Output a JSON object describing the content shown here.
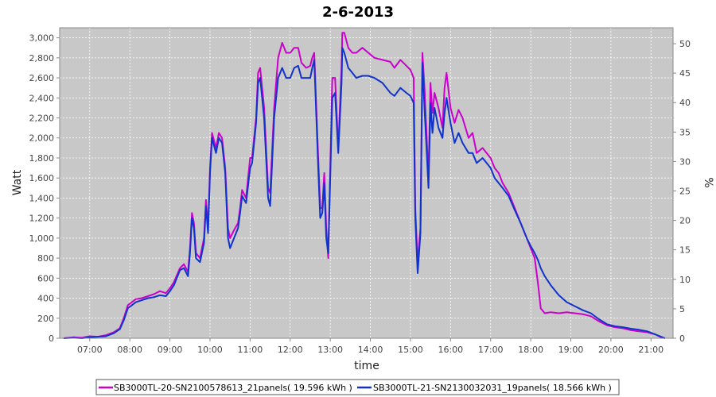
{
  "chart_data": {
    "type": "line",
    "title": "2-6-2013",
    "xlabel": "time",
    "ylabel": "Watt",
    "y2label": "%",
    "x_unit": "hours",
    "x_ticks": [
      "07:00",
      "08:00",
      "09:00",
      "10:00",
      "11:00",
      "12:00",
      "13:00",
      "14:00",
      "15:00",
      "16:00",
      "17:00",
      "18:00",
      "19:00",
      "20:00",
      "21:00"
    ],
    "xlim": [
      6.25,
      21.55
    ],
    "ylim": [
      0,
      3100
    ],
    "y_ticks": [
      "0",
      "200",
      "400",
      "600",
      "800",
      "1,000",
      "1,200",
      "1,400",
      "1,600",
      "1,800",
      "2,000",
      "2,200",
      "2,400",
      "2,600",
      "2,800",
      "3,000"
    ],
    "y2lim": [
      0,
      52.7
    ],
    "y2_ticks": [
      "0",
      "5",
      "10",
      "15",
      "20",
      "25",
      "30",
      "35",
      "40",
      "45",
      "50"
    ],
    "grid": true,
    "legend_position": "bottom",
    "series": [
      {
        "name": "SB3000TL-20-SN2100578613_21panels( 19.596 kWh )",
        "color": "#cc00cc",
        "points": [
          [
            6.35,
            0
          ],
          [
            6.6,
            10
          ],
          [
            6.8,
            5
          ],
          [
            7.0,
            20
          ],
          [
            7.2,
            15
          ],
          [
            7.4,
            30
          ],
          [
            7.6,
            60
          ],
          [
            7.75,
            100
          ],
          [
            7.85,
            200
          ],
          [
            7.95,
            330
          ],
          [
            8.05,
            360
          ],
          [
            8.15,
            390
          ],
          [
            8.3,
            400
          ],
          [
            8.45,
            420
          ],
          [
            8.6,
            440
          ],
          [
            8.75,
            470
          ],
          [
            8.9,
            450
          ],
          [
            9.0,
            500
          ],
          [
            9.1,
            560
          ],
          [
            9.25,
            700
          ],
          [
            9.35,
            740
          ],
          [
            9.45,
            660
          ],
          [
            9.5,
            900
          ],
          [
            9.55,
            1250
          ],
          [
            9.6,
            1150
          ],
          [
            9.65,
            850
          ],
          [
            9.75,
            800
          ],
          [
            9.85,
            1000
          ],
          [
            9.9,
            1380
          ],
          [
            9.95,
            1100
          ],
          [
            10.0,
            1700
          ],
          [
            10.05,
            2050
          ],
          [
            10.15,
            1900
          ],
          [
            10.22,
            2050
          ],
          [
            10.3,
            2000
          ],
          [
            10.38,
            1700
          ],
          [
            10.45,
            1100
          ],
          [
            10.5,
            1000
          ],
          [
            10.6,
            1080
          ],
          [
            10.7,
            1150
          ],
          [
            10.75,
            1300
          ],
          [
            10.8,
            1480
          ],
          [
            10.9,
            1400
          ],
          [
            11.0,
            1800
          ],
          [
            11.05,
            1800
          ],
          [
            11.15,
            2200
          ],
          [
            11.2,
            2650
          ],
          [
            11.25,
            2700
          ],
          [
            11.35,
            2300
          ],
          [
            11.45,
            1500
          ],
          [
            11.5,
            1450
          ],
          [
            11.6,
            2300
          ],
          [
            11.7,
            2800
          ],
          [
            11.8,
            2950
          ],
          [
            11.9,
            2850
          ],
          [
            12.0,
            2850
          ],
          [
            12.1,
            2900
          ],
          [
            12.2,
            2900
          ],
          [
            12.28,
            2750
          ],
          [
            12.4,
            2700
          ],
          [
            12.5,
            2720
          ],
          [
            12.55,
            2800
          ],
          [
            12.6,
            2850
          ],
          [
            12.7,
            1800
          ],
          [
            12.75,
            1300
          ],
          [
            12.8,
            1300
          ],
          [
            12.85,
            1650
          ],
          [
            12.9,
            1100
          ],
          [
            12.95,
            800
          ],
          [
            13.0,
            1700
          ],
          [
            13.05,
            2600
          ],
          [
            13.12,
            2600
          ],
          [
            13.2,
            1900
          ],
          [
            13.28,
            2700
          ],
          [
            13.3,
            3050
          ],
          [
            13.35,
            3050
          ],
          [
            13.45,
            2900
          ],
          [
            13.55,
            2850
          ],
          [
            13.65,
            2850
          ],
          [
            13.8,
            2900
          ],
          [
            13.95,
            2850
          ],
          [
            14.1,
            2800
          ],
          [
            14.3,
            2780
          ],
          [
            14.5,
            2760
          ],
          [
            14.6,
            2700
          ],
          [
            14.75,
            2780
          ],
          [
            14.9,
            2720
          ],
          [
            15.0,
            2680
          ],
          [
            15.08,
            2600
          ],
          [
            15.12,
            1300
          ],
          [
            15.18,
            750
          ],
          [
            15.25,
            1100
          ],
          [
            15.3,
            2850
          ],
          [
            15.35,
            2500
          ],
          [
            15.45,
            1600
          ],
          [
            15.5,
            2550
          ],
          [
            15.55,
            2250
          ],
          [
            15.6,
            2450
          ],
          [
            15.7,
            2300
          ],
          [
            15.8,
            2100
          ],
          [
            15.85,
            2500
          ],
          [
            15.9,
            2650
          ],
          [
            16.0,
            2300
          ],
          [
            16.1,
            2150
          ],
          [
            16.2,
            2280
          ],
          [
            16.3,
            2200
          ],
          [
            16.45,
            2000
          ],
          [
            16.55,
            2050
          ],
          [
            16.65,
            1850
          ],
          [
            16.8,
            1900
          ],
          [
            16.9,
            1850
          ],
          [
            17.0,
            1800
          ],
          [
            17.1,
            1700
          ],
          [
            17.2,
            1650
          ],
          [
            17.3,
            1550
          ],
          [
            17.45,
            1450
          ],
          [
            17.6,
            1300
          ],
          [
            17.75,
            1150
          ],
          [
            17.9,
            1000
          ],
          [
            18.0,
            900
          ],
          [
            18.1,
            800
          ],
          [
            18.18,
            550
          ],
          [
            18.25,
            300
          ],
          [
            18.35,
            250
          ],
          [
            18.5,
            260
          ],
          [
            18.7,
            250
          ],
          [
            18.9,
            260
          ],
          [
            19.1,
            250
          ],
          [
            19.3,
            240
          ],
          [
            19.5,
            220
          ],
          [
            19.7,
            170
          ],
          [
            19.9,
            130
          ],
          [
            20.1,
            110
          ],
          [
            20.3,
            100
          ],
          [
            20.5,
            80
          ],
          [
            20.7,
            70
          ],
          [
            20.9,
            60
          ],
          [
            21.1,
            40
          ],
          [
            21.25,
            10
          ],
          [
            21.35,
            0
          ]
        ]
      },
      {
        "name": "SB3000TL-21-SN2130032031_19panels( 18.566 kWh )",
        "color": "#1133cc",
        "points": [
          [
            6.35,
            0
          ],
          [
            6.6,
            5
          ],
          [
            6.8,
            0
          ],
          [
            7.0,
            10
          ],
          [
            7.2,
            15
          ],
          [
            7.4,
            20
          ],
          [
            7.6,
            50
          ],
          [
            7.75,
            90
          ],
          [
            7.85,
            180
          ],
          [
            7.95,
            300
          ],
          [
            8.05,
            330
          ],
          [
            8.15,
            360
          ],
          [
            8.3,
            380
          ],
          [
            8.45,
            400
          ],
          [
            8.6,
            410
          ],
          [
            8.75,
            430
          ],
          [
            8.9,
            420
          ],
          [
            9.0,
            470
          ],
          [
            9.1,
            530
          ],
          [
            9.25,
            680
          ],
          [
            9.35,
            700
          ],
          [
            9.45,
            620
          ],
          [
            9.5,
            850
          ],
          [
            9.55,
            1200
          ],
          [
            9.6,
            1100
          ],
          [
            9.65,
            800
          ],
          [
            9.75,
            760
          ],
          [
            9.85,
            950
          ],
          [
            9.9,
            1320
          ],
          [
            9.95,
            1050
          ],
          [
            10.0,
            1650
          ],
          [
            10.05,
            2000
          ],
          [
            10.15,
            1850
          ],
          [
            10.22,
            2000
          ],
          [
            10.3,
            1950
          ],
          [
            10.38,
            1650
          ],
          [
            10.45,
            1000
          ],
          [
            10.5,
            900
          ],
          [
            10.6,
            1000
          ],
          [
            10.7,
            1100
          ],
          [
            10.75,
            1250
          ],
          [
            10.8,
            1420
          ],
          [
            10.9,
            1350
          ],
          [
            11.0,
            1700
          ],
          [
            11.05,
            1750
          ],
          [
            11.15,
            2150
          ],
          [
            11.2,
            2550
          ],
          [
            11.25,
            2600
          ],
          [
            11.35,
            2200
          ],
          [
            11.45,
            1400
          ],
          [
            11.5,
            1320
          ],
          [
            11.6,
            2200
          ],
          [
            11.7,
            2600
          ],
          [
            11.8,
            2700
          ],
          [
            11.9,
            2600
          ],
          [
            12.0,
            2600
          ],
          [
            12.1,
            2700
          ],
          [
            12.2,
            2720
          ],
          [
            12.28,
            2600
          ],
          [
            12.4,
            2600
          ],
          [
            12.5,
            2600
          ],
          [
            12.55,
            2700
          ],
          [
            12.6,
            2780
          ],
          [
            12.7,
            1700
          ],
          [
            12.75,
            1200
          ],
          [
            12.8,
            1250
          ],
          [
            12.85,
            1550
          ],
          [
            12.9,
            1000
          ],
          [
            12.95,
            850
          ],
          [
            13.0,
            1600
          ],
          [
            13.05,
            2400
          ],
          [
            13.12,
            2450
          ],
          [
            13.2,
            1850
          ],
          [
            13.28,
            2550
          ],
          [
            13.3,
            2900
          ],
          [
            13.35,
            2850
          ],
          [
            13.45,
            2700
          ],
          [
            13.55,
            2650
          ],
          [
            13.65,
            2600
          ],
          [
            13.8,
            2620
          ],
          [
            13.95,
            2620
          ],
          [
            14.1,
            2600
          ],
          [
            14.3,
            2550
          ],
          [
            14.5,
            2450
          ],
          [
            14.6,
            2420
          ],
          [
            14.75,
            2500
          ],
          [
            14.9,
            2450
          ],
          [
            15.0,
            2420
          ],
          [
            15.08,
            2350
          ],
          [
            15.12,
            1200
          ],
          [
            15.18,
            650
          ],
          [
            15.25,
            1050
          ],
          [
            15.3,
            2750
          ],
          [
            15.35,
            2300
          ],
          [
            15.45,
            1500
          ],
          [
            15.5,
            2350
          ],
          [
            15.55,
            2050
          ],
          [
            15.6,
            2300
          ],
          [
            15.7,
            2100
          ],
          [
            15.8,
            2000
          ],
          [
            15.85,
            2250
          ],
          [
            15.9,
            2400
          ],
          [
            16.0,
            2150
          ],
          [
            16.1,
            1950
          ],
          [
            16.2,
            2050
          ],
          [
            16.3,
            1950
          ],
          [
            16.45,
            1850
          ],
          [
            16.55,
            1850
          ],
          [
            16.65,
            1750
          ],
          [
            16.8,
            1800
          ],
          [
            16.9,
            1750
          ],
          [
            17.0,
            1700
          ],
          [
            17.1,
            1600
          ],
          [
            17.2,
            1550
          ],
          [
            17.3,
            1500
          ],
          [
            17.45,
            1420
          ],
          [
            17.6,
            1280
          ],
          [
            17.75,
            1150
          ],
          [
            17.9,
            1000
          ],
          [
            18.0,
            920
          ],
          [
            18.1,
            850
          ],
          [
            18.18,
            780
          ],
          [
            18.25,
            700
          ],
          [
            18.35,
            620
          ],
          [
            18.5,
            530
          ],
          [
            18.7,
            430
          ],
          [
            18.9,
            360
          ],
          [
            19.1,
            320
          ],
          [
            19.3,
            280
          ],
          [
            19.5,
            250
          ],
          [
            19.7,
            190
          ],
          [
            19.9,
            140
          ],
          [
            20.1,
            120
          ],
          [
            20.3,
            110
          ],
          [
            20.5,
            95
          ],
          [
            20.7,
            85
          ],
          [
            20.9,
            70
          ],
          [
            21.1,
            40
          ],
          [
            21.25,
            15
          ],
          [
            21.35,
            0
          ]
        ]
      }
    ]
  }
}
